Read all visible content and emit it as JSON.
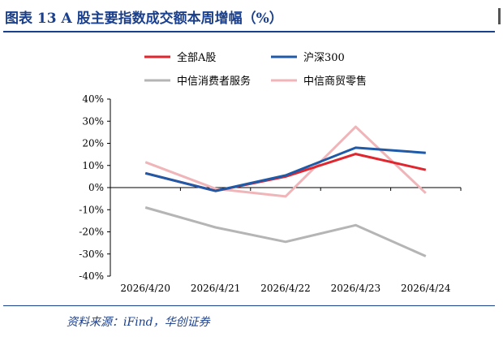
{
  "header": {
    "title": "图表 13  A 股主要指数成交额本周增幅（%）"
  },
  "footer": {
    "source": "资料来源：iFind，华创证券"
  },
  "chart_data": {
    "type": "line",
    "categories": [
      "2026/4/20",
      "2026/4/21",
      "2026/4/22",
      "2026/4/23",
      "2026/4/24"
    ],
    "ylim": [
      -40,
      40
    ],
    "yticks": [
      40,
      30,
      20,
      10,
      0,
      -10,
      -20,
      -30,
      -40
    ],
    "ytick_labels": [
      "40%",
      "30%",
      "20%",
      "10%",
      "0%",
      "-10%",
      "-20%",
      "-30%",
      "-40%"
    ],
    "grid": false,
    "legend_position": "top",
    "series": [
      {
        "name": "全部A股",
        "color": "#e0262e",
        "values": [
          6.5,
          -1.5,
          5,
          15.2,
          8
        ]
      },
      {
        "name": "沪深300",
        "color": "#1f5aa8",
        "values": [
          6.5,
          -1.5,
          5.5,
          18,
          15.7
        ]
      },
      {
        "name": "中信消费者服务",
        "color": "#b5b5b5",
        "values": [
          -9,
          -18,
          -24.5,
          -17,
          -31
        ]
      },
      {
        "name": "中信商贸零售",
        "color": "#f0b5b8",
        "values": [
          11.5,
          -0.5,
          -4,
          27.5,
          -2.5
        ]
      }
    ]
  }
}
